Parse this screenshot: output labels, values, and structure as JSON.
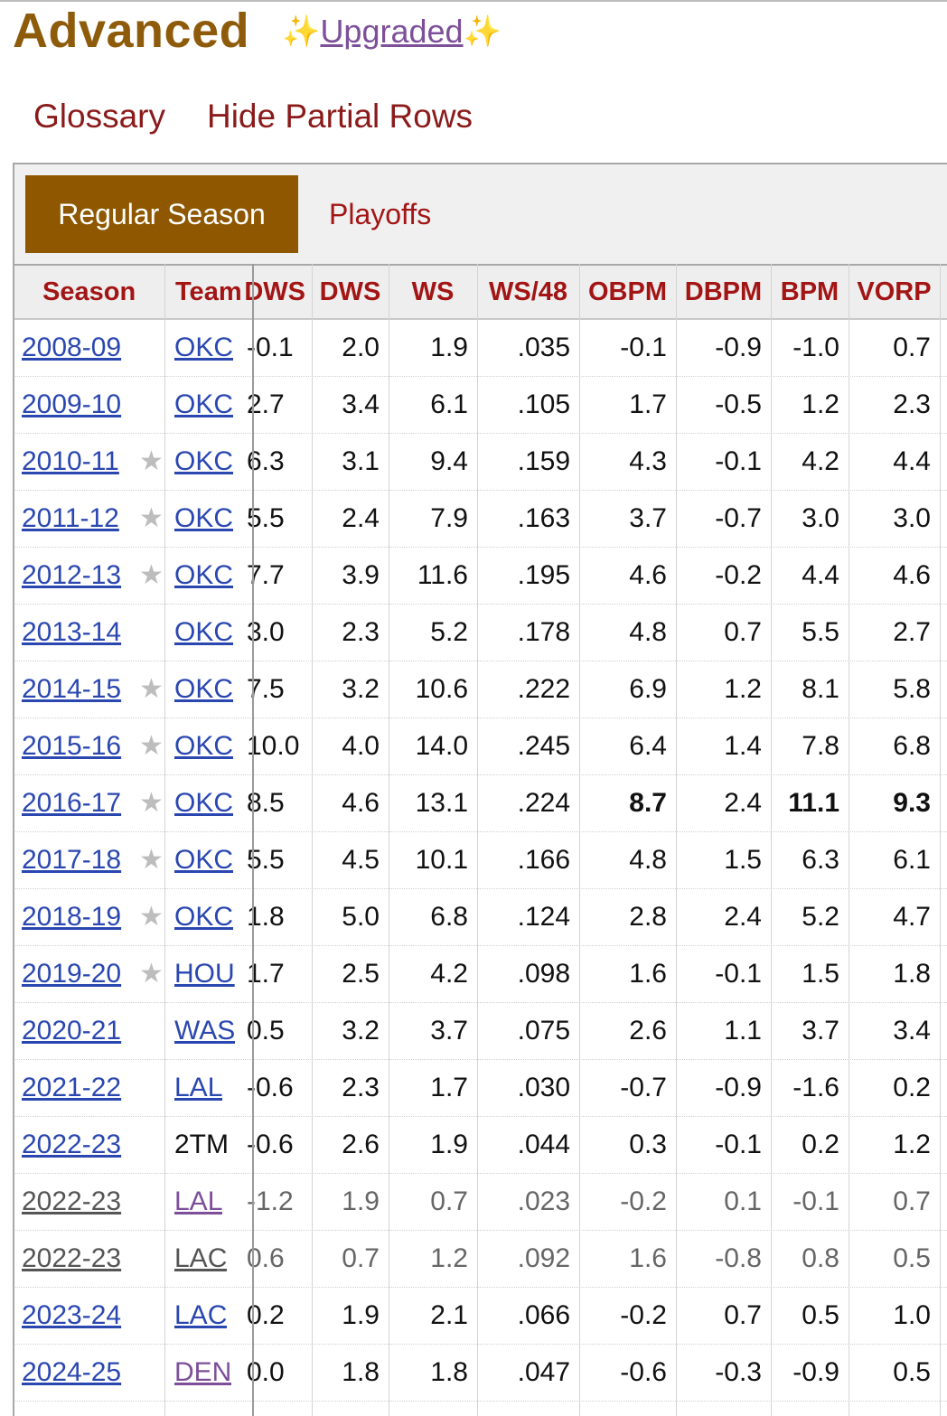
{
  "header": {
    "title": "Advanced",
    "upgraded_label": "Upgraded",
    "sparkle": "✨"
  },
  "links": {
    "glossary": "Glossary",
    "hide_partial": "Hide Partial Rows"
  },
  "tabs": {
    "regular": "Regular Season",
    "playoffs": "Playoffs"
  },
  "columns": [
    "Season",
    "Team",
    "DWS",
    "DWS",
    "WS",
    "WS/48",
    "OBPM",
    "DBPM",
    "BPM",
    "VORP"
  ],
  "rows": [
    {
      "season": "2008-09",
      "star": false,
      "team": "OKC",
      "team_link": true,
      "team_visited": false,
      "partial": false,
      "v": [
        "-0.1",
        "2.0",
        "1.9",
        ".035",
        "-0.1",
        "-0.9",
        "-1.0",
        "0.7"
      ]
    },
    {
      "season": "2009-10",
      "star": false,
      "team": "OKC",
      "team_link": true,
      "team_visited": false,
      "partial": false,
      "v": [
        "2.7",
        "3.4",
        "6.1",
        ".105",
        "1.7",
        "-0.5",
        "1.2",
        "2.3"
      ]
    },
    {
      "season": "2010-11",
      "star": true,
      "team": "OKC",
      "team_link": true,
      "team_visited": false,
      "partial": false,
      "v": [
        "6.3",
        "3.1",
        "9.4",
        ".159",
        "4.3",
        "-0.1",
        "4.2",
        "4.4"
      ]
    },
    {
      "season": "2011-12",
      "star": true,
      "team": "OKC",
      "team_link": true,
      "team_visited": false,
      "partial": false,
      "v": [
        "5.5",
        "2.4",
        "7.9",
        ".163",
        "3.7",
        "-0.7",
        "3.0",
        "3.0"
      ]
    },
    {
      "season": "2012-13",
      "star": true,
      "team": "OKC",
      "team_link": true,
      "team_visited": false,
      "partial": false,
      "v": [
        "7.7",
        "3.9",
        "11.6",
        ".195",
        "4.6",
        "-0.2",
        "4.4",
        "4.6"
      ]
    },
    {
      "season": "2013-14",
      "star": false,
      "team": "OKC",
      "team_link": true,
      "team_visited": false,
      "partial": false,
      "v": [
        "3.0",
        "2.3",
        "5.2",
        ".178",
        "4.8",
        "0.7",
        "5.5",
        "2.7"
      ]
    },
    {
      "season": "2014-15",
      "star": true,
      "team": "OKC",
      "team_link": true,
      "team_visited": false,
      "partial": false,
      "v": [
        "7.5",
        "3.2",
        "10.6",
        ".222",
        "6.9",
        "1.2",
        "8.1",
        "5.8"
      ]
    },
    {
      "season": "2015-16",
      "star": true,
      "team": "OKC",
      "team_link": true,
      "team_visited": false,
      "partial": false,
      "v": [
        "10.0",
        "4.0",
        "14.0",
        ".245",
        "6.4",
        "1.4",
        "7.8",
        "6.8"
      ]
    },
    {
      "season": "2016-17",
      "star": true,
      "team": "OKC",
      "team_link": true,
      "team_visited": false,
      "partial": false,
      "v": [
        "8.5",
        "4.6",
        "13.1",
        ".224",
        "8.7",
        "2.4",
        "11.1",
        "9.3"
      ],
      "bold": [
        4,
        6,
        7
      ]
    },
    {
      "season": "2017-18",
      "star": true,
      "team": "OKC",
      "team_link": true,
      "team_visited": false,
      "partial": false,
      "v": [
        "5.5",
        "4.5",
        "10.1",
        ".166",
        "4.8",
        "1.5",
        "6.3",
        "6.1"
      ]
    },
    {
      "season": "2018-19",
      "star": true,
      "team": "OKC",
      "team_link": true,
      "team_visited": false,
      "partial": false,
      "v": [
        "1.8",
        "5.0",
        "6.8",
        ".124",
        "2.8",
        "2.4",
        "5.2",
        "4.7"
      ]
    },
    {
      "season": "2019-20",
      "star": true,
      "team": "HOU",
      "team_link": true,
      "team_visited": false,
      "partial": false,
      "v": [
        "1.7",
        "2.5",
        "4.2",
        ".098",
        "1.6",
        "-0.1",
        "1.5",
        "1.8"
      ]
    },
    {
      "season": "2020-21",
      "star": false,
      "team": "WAS",
      "team_link": true,
      "team_visited": false,
      "partial": false,
      "v": [
        "0.5",
        "3.2",
        "3.7",
        ".075",
        "2.6",
        "1.1",
        "3.7",
        "3.4"
      ]
    },
    {
      "season": "2021-22",
      "star": false,
      "team": "LAL",
      "team_link": true,
      "team_visited": false,
      "partial": false,
      "v": [
        "-0.6",
        "2.3",
        "1.7",
        ".030",
        "-0.7",
        "-0.9",
        "-1.6",
        "0.2"
      ]
    },
    {
      "season": "2022-23",
      "star": false,
      "team": "2TM",
      "team_link": false,
      "team_visited": false,
      "partial": false,
      "v": [
        "-0.6",
        "2.6",
        "1.9",
        ".044",
        "0.3",
        "-0.1",
        "0.2",
        "1.2"
      ]
    },
    {
      "season": "2022-23",
      "star": false,
      "team": "LAL",
      "team_link": true,
      "team_visited": true,
      "partial": true,
      "v": [
        "-1.2",
        "1.9",
        "0.7",
        ".023",
        "-0.2",
        "0.1",
        "-0.1",
        "0.7"
      ]
    },
    {
      "season": "2022-23",
      "star": false,
      "team": "LAC",
      "team_link": true,
      "team_visited": false,
      "partial": true,
      "v": [
        "0.6",
        "0.7",
        "1.2",
        ".092",
        "1.6",
        "-0.8",
        "0.8",
        "0.5"
      ]
    },
    {
      "season": "2023-24",
      "star": false,
      "team": "LAC",
      "team_link": true,
      "team_visited": false,
      "partial": false,
      "v": [
        "0.2",
        "1.9",
        "2.1",
        ".066",
        "-0.2",
        "0.7",
        "0.5",
        "1.0"
      ]
    },
    {
      "season": "2024-25",
      "star": false,
      "team": "DEN",
      "team_link": true,
      "team_visited": true,
      "partial": false,
      "v": [
        "0.0",
        "1.8",
        "1.8",
        ".047",
        "-0.6",
        "-0.3",
        "-0.9",
        "0.5"
      ]
    }
  ]
}
